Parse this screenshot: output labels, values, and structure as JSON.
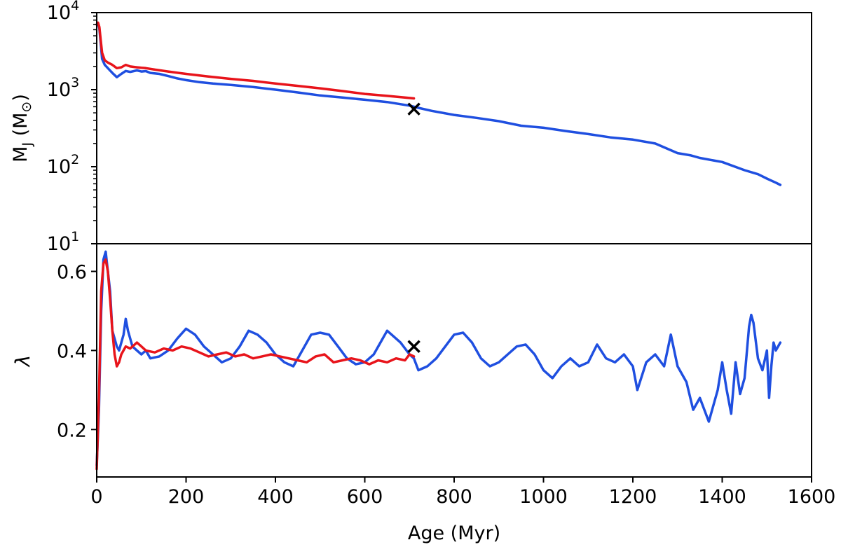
{
  "chart_data": [
    {
      "type": "line",
      "panel": "top",
      "ylabel_main": "M",
      "ylabel_sub": "J",
      "ylabel_unit_open": " (M",
      "ylabel_unit_sym": "⊙",
      "ylabel_unit_close": ")",
      "yscale": "log",
      "ylim": [
        10,
        10000
      ],
      "xlim": [
        0,
        1600
      ],
      "yticks": [
        {
          "base": "10",
          "exp": "1",
          "value": 10
        },
        {
          "base": "10",
          "exp": "2",
          "value": 100
        },
        {
          "base": "10",
          "exp": "3",
          "value": 1000
        },
        {
          "base": "10",
          "exp": "4",
          "value": 10000
        }
      ],
      "series": [
        {
          "color": "#1f4fe0",
          "points": [
            [
              0,
              7000
            ],
            [
              3,
              7300
            ],
            [
              6,
              6200
            ],
            [
              9,
              4000
            ],
            [
              12,
              2500
            ],
            [
              18,
              2100
            ],
            [
              25,
              1900
            ],
            [
              35,
              1650
            ],
            [
              45,
              1450
            ],
            [
              55,
              1600
            ],
            [
              65,
              1750
            ],
            [
              75,
              1700
            ],
            [
              90,
              1780
            ],
            [
              100,
              1720
            ],
            [
              110,
              1740
            ],
            [
              120,
              1650
            ],
            [
              140,
              1600
            ],
            [
              160,
              1500
            ],
            [
              180,
              1400
            ],
            [
              200,
              1330
            ],
            [
              230,
              1250
            ],
            [
              260,
              1200
            ],
            [
              300,
              1150
            ],
            [
              350,
              1080
            ],
            [
              400,
              1000
            ],
            [
              450,
              920
            ],
            [
              500,
              840
            ],
            [
              550,
              790
            ],
            [
              600,
              740
            ],
            [
              650,
              690
            ],
            [
              700,
              620
            ],
            [
              720,
              580
            ],
            [
              750,
              530
            ],
            [
              800,
              470
            ],
            [
              850,
              430
            ],
            [
              900,
              390
            ],
            [
              950,
              340
            ],
            [
              1000,
              320
            ],
            [
              1050,
              290
            ],
            [
              1100,
              265
            ],
            [
              1150,
              240
            ],
            [
              1200,
              225
            ],
            [
              1250,
              200
            ],
            [
              1300,
              150
            ],
            [
              1330,
              140
            ],
            [
              1350,
              130
            ],
            [
              1400,
              115
            ],
            [
              1450,
              90
            ],
            [
              1480,
              80
            ],
            [
              1500,
              70
            ],
            [
              1520,
              62
            ],
            [
              1530,
              58
            ]
          ]
        },
        {
          "color": "#e8141b",
          "points": [
            [
              0,
              7000
            ],
            [
              3,
              7400
            ],
            [
              6,
              6500
            ],
            [
              9,
              4400
            ],
            [
              12,
              3000
            ],
            [
              18,
              2400
            ],
            [
              25,
              2250
            ],
            [
              35,
              2100
            ],
            [
              45,
              1900
            ],
            [
              55,
              1950
            ],
            [
              65,
              2100
            ],
            [
              75,
              2000
            ],
            [
              90,
              1950
            ],
            [
              100,
              1920
            ],
            [
              110,
              1900
            ],
            [
              130,
              1820
            ],
            [
              160,
              1720
            ],
            [
              200,
              1600
            ],
            [
              250,
              1480
            ],
            [
              300,
              1380
            ],
            [
              350,
              1300
            ],
            [
              400,
              1200
            ],
            [
              450,
              1120
            ],
            [
              500,
              1040
            ],
            [
              550,
              960
            ],
            [
              600,
              880
            ],
            [
              650,
              830
            ],
            [
              700,
              780
            ],
            [
              710,
              770
            ]
          ]
        }
      ],
      "marker": {
        "symbol": "x",
        "x": 710,
        "y": 560
      }
    },
    {
      "type": "line",
      "panel": "bottom",
      "ylabel": "λ",
      "xlabel": "Age (Myr)",
      "ylim": [
        0.08,
        0.67
      ],
      "xlim": [
        0,
        1600
      ],
      "yticks": [
        0.2,
        0.4,
        0.6
      ],
      "xticks": [
        0,
        200,
        400,
        600,
        800,
        1000,
        1200,
        1400,
        1600
      ],
      "series": [
        {
          "color": "#1f4fe0",
          "points": [
            [
              0,
              0.11
            ],
            [
              5,
              0.25
            ],
            [
              10,
              0.5
            ],
            [
              15,
              0.63
            ],
            [
              20,
              0.65
            ],
            [
              25,
              0.6
            ],
            [
              30,
              0.55
            ],
            [
              35,
              0.45
            ],
            [
              40,
              0.43
            ],
            [
              45,
              0.41
            ],
            [
              50,
              0.4
            ],
            [
              55,
              0.42
            ],
            [
              60,
              0.44
            ],
            [
              65,
              0.48
            ],
            [
              70,
              0.45
            ],
            [
              80,
              0.41
            ],
            [
              90,
              0.4
            ],
            [
              100,
              0.39
            ],
            [
              110,
              0.4
            ],
            [
              120,
              0.38
            ],
            [
              140,
              0.385
            ],
            [
              160,
              0.4
            ],
            [
              180,
              0.43
            ],
            [
              200,
              0.455
            ],
            [
              220,
              0.44
            ],
            [
              240,
              0.41
            ],
            [
              260,
              0.39
            ],
            [
              280,
              0.37
            ],
            [
              300,
              0.38
            ],
            [
              320,
              0.41
            ],
            [
              340,
              0.45
            ],
            [
              360,
              0.44
            ],
            [
              380,
              0.42
            ],
            [
              400,
              0.39
            ],
            [
              420,
              0.37
            ],
            [
              440,
              0.36
            ],
            [
              460,
              0.4
            ],
            [
              480,
              0.44
            ],
            [
              500,
              0.445
            ],
            [
              520,
              0.44
            ],
            [
              540,
              0.41
            ],
            [
              560,
              0.38
            ],
            [
              580,
              0.365
            ],
            [
              600,
              0.37
            ],
            [
              620,
              0.39
            ],
            [
              640,
              0.43
            ],
            [
              650,
              0.45
            ],
            [
              660,
              0.44
            ],
            [
              680,
              0.42
            ],
            [
              700,
              0.39
            ],
            [
              710,
              0.38
            ],
            [
              720,
              0.35
            ],
            [
              740,
              0.36
            ],
            [
              760,
              0.38
            ],
            [
              780,
              0.41
            ],
            [
              800,
              0.44
            ],
            [
              820,
              0.445
            ],
            [
              840,
              0.42
            ],
            [
              860,
              0.38
            ],
            [
              880,
              0.36
            ],
            [
              900,
              0.37
            ],
            [
              920,
              0.39
            ],
            [
              940,
              0.41
            ],
            [
              960,
              0.415
            ],
            [
              980,
              0.39
            ],
            [
              1000,
              0.35
            ],
            [
              1020,
              0.33
            ],
            [
              1040,
              0.36
            ],
            [
              1060,
              0.38
            ],
            [
              1080,
              0.36
            ],
            [
              1100,
              0.37
            ],
            [
              1120,
              0.415
            ],
            [
              1140,
              0.38
            ],
            [
              1160,
              0.37
            ],
            [
              1180,
              0.39
            ],
            [
              1200,
              0.36
            ],
            [
              1210,
              0.3
            ],
            [
              1230,
              0.37
            ],
            [
              1250,
              0.39
            ],
            [
              1270,
              0.36
            ],
            [
              1285,
              0.44
            ],
            [
              1300,
              0.36
            ],
            [
              1320,
              0.32
            ],
            [
              1335,
              0.25
            ],
            [
              1350,
              0.28
            ],
            [
              1370,
              0.22
            ],
            [
              1390,
              0.3
            ],
            [
              1400,
              0.37
            ],
            [
              1410,
              0.3
            ],
            [
              1420,
              0.24
            ],
            [
              1430,
              0.37
            ],
            [
              1440,
              0.29
            ],
            [
              1450,
              0.33
            ],
            [
              1460,
              0.46
            ],
            [
              1465,
              0.49
            ],
            [
              1470,
              0.47
            ],
            [
              1480,
              0.38
            ],
            [
              1490,
              0.35
            ],
            [
              1500,
              0.4
            ],
            [
              1505,
              0.28
            ],
            [
              1510,
              0.36
            ],
            [
              1515,
              0.42
            ],
            [
              1520,
              0.4
            ],
            [
              1530,
              0.42
            ]
          ]
        },
        {
          "color": "#e8141b",
          "points": [
            [
              0,
              0.1
            ],
            [
              5,
              0.28
            ],
            [
              10,
              0.55
            ],
            [
              15,
              0.62
            ],
            [
              20,
              0.63
            ],
            [
              25,
              0.6
            ],
            [
              30,
              0.53
            ],
            [
              35,
              0.45
            ],
            [
              40,
              0.39
            ],
            [
              45,
              0.36
            ],
            [
              50,
              0.37
            ],
            [
              55,
              0.39
            ],
            [
              65,
              0.41
            ],
            [
              75,
              0.405
            ],
            [
              90,
              0.42
            ],
            [
              100,
              0.41
            ],
            [
              110,
              0.4
            ],
            [
              130,
              0.395
            ],
            [
              150,
              0.405
            ],
            [
              170,
              0.4
            ],
            [
              190,
              0.41
            ],
            [
              210,
              0.405
            ],
            [
              230,
              0.395
            ],
            [
              250,
              0.385
            ],
            [
              270,
              0.39
            ],
            [
              290,
              0.395
            ],
            [
              310,
              0.385
            ],
            [
              330,
              0.39
            ],
            [
              350,
              0.38
            ],
            [
              370,
              0.385
            ],
            [
              390,
              0.39
            ],
            [
              410,
              0.385
            ],
            [
              430,
              0.38
            ],
            [
              450,
              0.375
            ],
            [
              470,
              0.37
            ],
            [
              490,
              0.385
            ],
            [
              510,
              0.39
            ],
            [
              530,
              0.37
            ],
            [
              550,
              0.375
            ],
            [
              570,
              0.38
            ],
            [
              590,
              0.375
            ],
            [
              610,
              0.365
            ],
            [
              630,
              0.375
            ],
            [
              650,
              0.37
            ],
            [
              670,
              0.38
            ],
            [
              690,
              0.375
            ],
            [
              700,
              0.39
            ],
            [
              710,
              0.385
            ]
          ]
        }
      ],
      "marker": {
        "symbol": "x",
        "x": 710,
        "y": 0.41
      }
    }
  ]
}
